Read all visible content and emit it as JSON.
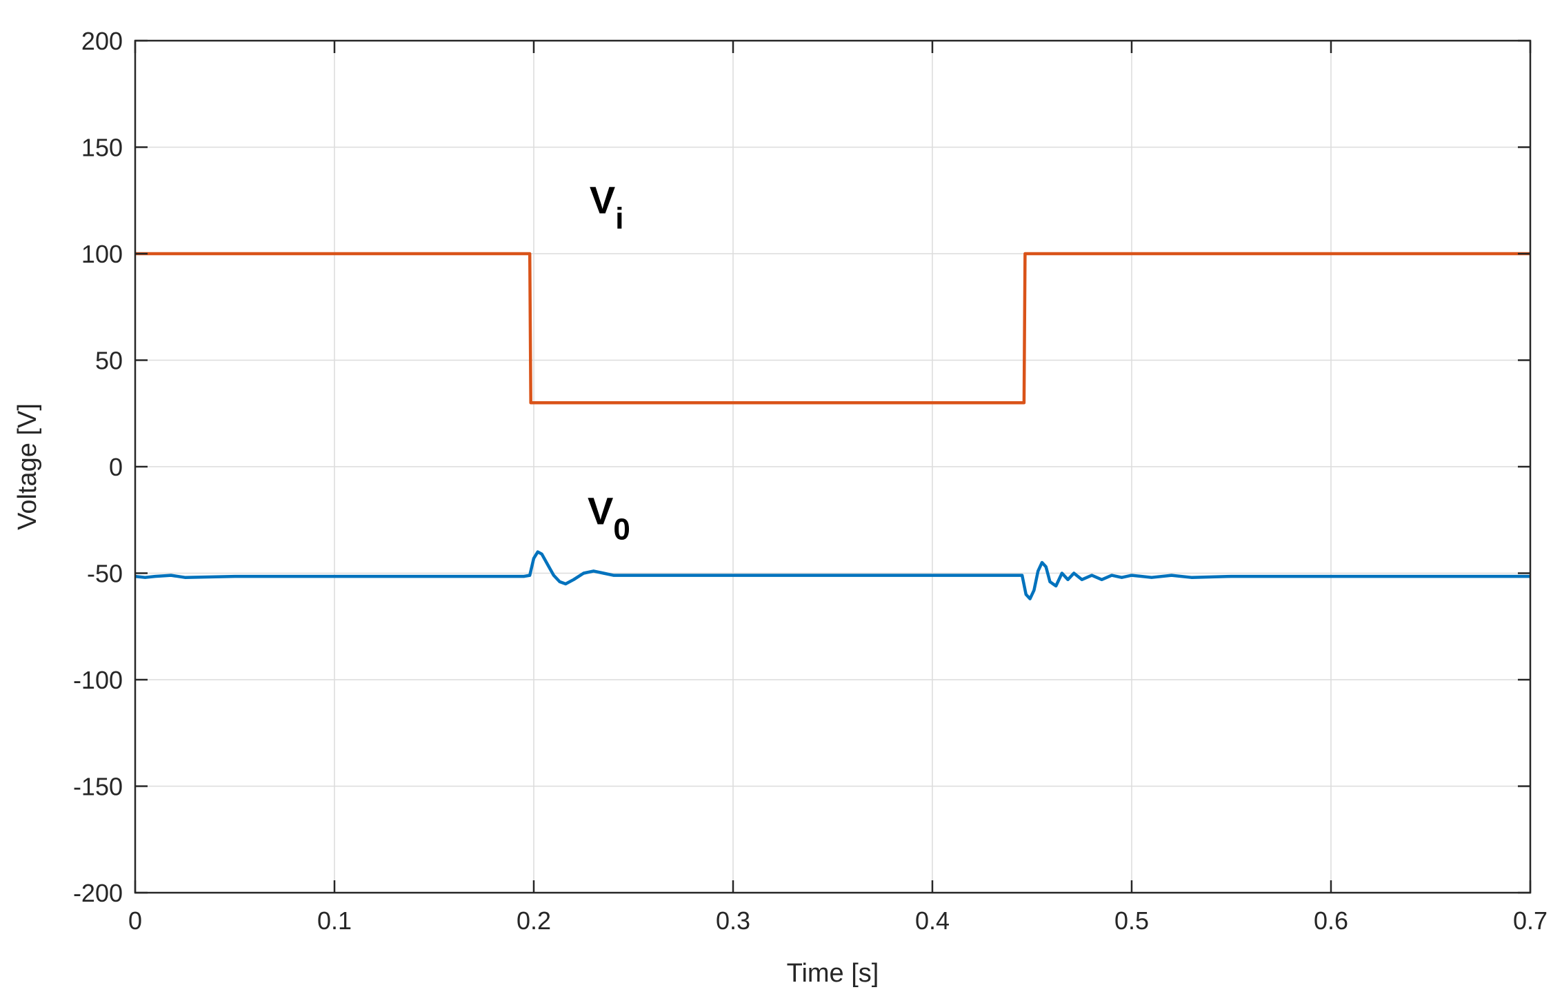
{
  "chart_data": {
    "type": "line",
    "title": "",
    "xlabel": "Time [s]",
    "ylabel": "Voltage [V]",
    "xlim": [
      0,
      0.7
    ],
    "ylim": [
      -200,
      200
    ],
    "x_ticks": [
      0,
      0.1,
      0.2,
      0.3,
      0.4,
      0.5,
      0.6,
      0.7
    ],
    "x_tick_labels": [
      "0",
      "0.1",
      "0.2",
      "0.3",
      "0.4",
      "0.5",
      "0.6",
      "0.7"
    ],
    "y_ticks": [
      200,
      150,
      100,
      50,
      0,
      -50,
      -100,
      -150,
      -200
    ],
    "y_tick_labels": [
      "200",
      "150",
      "100",
      "50",
      "0",
      "-50",
      "-100",
      "-150",
      "-200"
    ],
    "grid": true,
    "series": [
      {
        "color": "#D95319",
        "x": [
          0,
          0.198,
          0.1985,
          0.446,
          0.4465,
          0.7
        ],
        "values": [
          100,
          100,
          30,
          30,
          100,
          100
        ]
      },
      {
        "color": "#0072BD",
        "x": [
          0,
          0.005,
          0.01,
          0.018,
          0.025,
          0.05,
          0.1,
          0.15,
          0.195,
          0.198,
          0.2,
          0.202,
          0.204,
          0.207,
          0.21,
          0.213,
          0.216,
          0.22,
          0.225,
          0.23,
          0.235,
          0.24,
          0.245,
          0.25,
          0.3,
          0.35,
          0.4,
          0.445,
          0.447,
          0.449,
          0.451,
          0.453,
          0.455,
          0.457,
          0.459,
          0.462,
          0.465,
          0.468,
          0.471,
          0.475,
          0.48,
          0.485,
          0.49,
          0.495,
          0.5,
          0.51,
          0.52,
          0.53,
          0.55,
          0.6,
          0.65,
          0.7
        ],
        "values": [
          -51.5,
          -52,
          -51.5,
          -51,
          -52,
          -51.5,
          -51.5,
          -51.5,
          -51.5,
          -51,
          -43,
          -40,
          -41,
          -46,
          -51,
          -54,
          -55,
          -53,
          -50,
          -49,
          -50,
          -51,
          -51,
          -51,
          -51,
          -51,
          -51,
          -51,
          -60,
          -62,
          -58,
          -49,
          -45,
          -47,
          -54,
          -56,
          -50,
          -53,
          -50,
          -53,
          -51,
          -53,
          -51,
          -52,
          -51,
          -52,
          -51,
          -52,
          -51.5,
          -51.5,
          -51.5,
          -51.5
        ]
      }
    ],
    "annotations": [
      {
        "main": "V",
        "sub": "i",
        "x": 0.228,
        "y": 119
      },
      {
        "main": "V",
        "sub": "0",
        "x": 0.227,
        "y": -27
      }
    ]
  }
}
